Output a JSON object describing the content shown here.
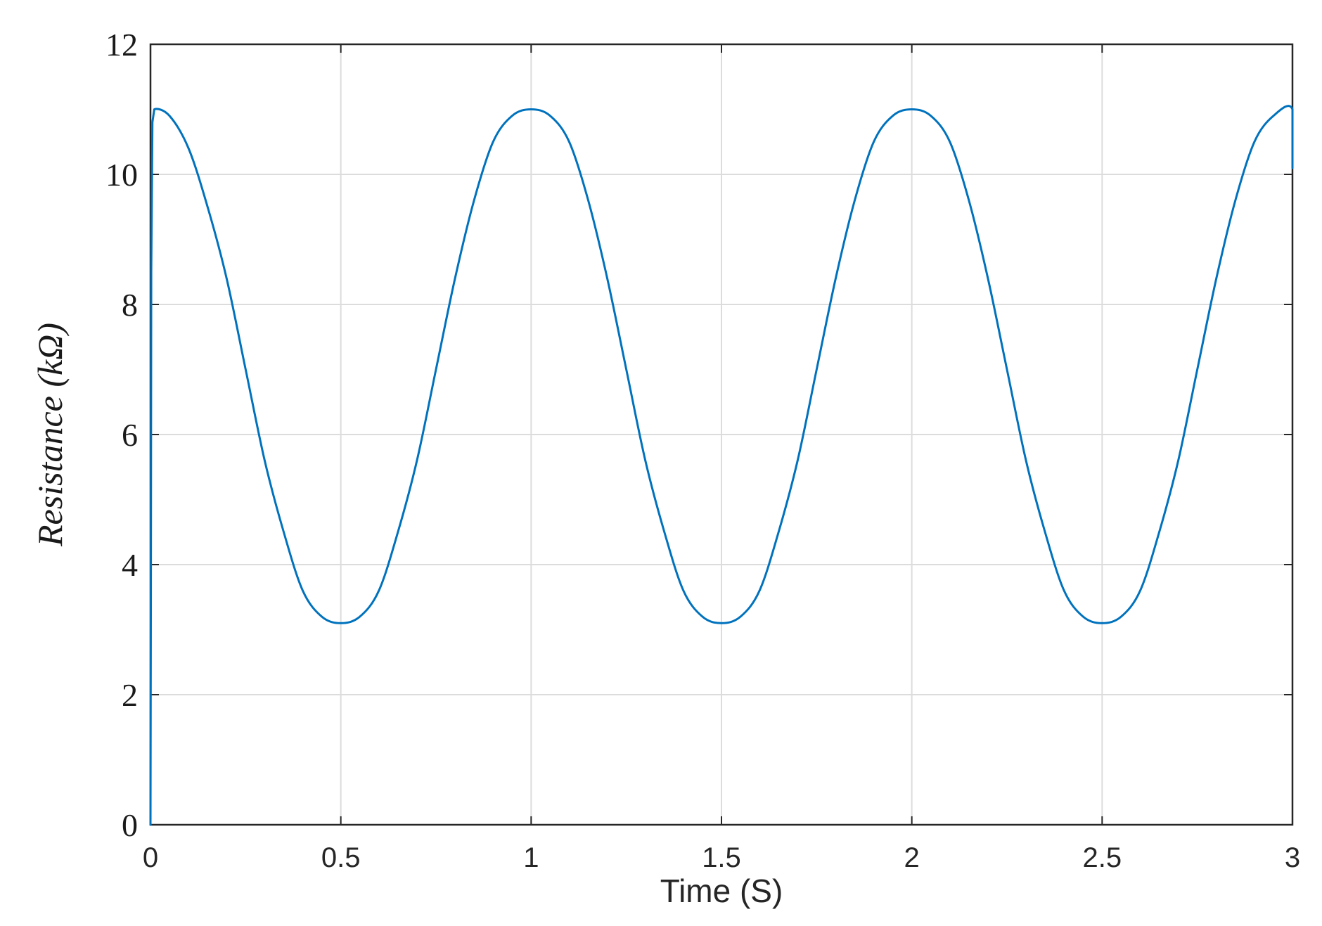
{
  "chart_data": {
    "type": "line",
    "title": "",
    "xlabel": "Time (S)",
    "ylabel": "Resistance (kΩ)",
    "xlim": [
      0,
      3
    ],
    "ylim": [
      0,
      12
    ],
    "x_ticks": [
      "0",
      "0.5",
      "1",
      "1.5",
      "2",
      "2.5",
      "3"
    ],
    "y_ticks": [
      "0",
      "2",
      "4",
      "6",
      "8",
      "10",
      "12"
    ],
    "grid": true,
    "legend": "none",
    "line_color": "#0072bd",
    "series": [
      {
        "x": [
          0,
          0.001,
          0.002,
          0.005,
          0.01,
          0.05,
          0.1,
          0.15,
          0.2,
          0.25,
          0.3,
          0.35,
          0.4,
          0.45,
          0.5,
          0.55,
          0.6,
          0.65,
          0.7,
          0.75,
          0.8,
          0.85,
          0.9,
          0.95,
          1.0,
          1.05,
          1.1,
          1.15,
          1.2,
          1.25,
          1.3,
          1.35,
          1.4,
          1.45,
          1.5,
          1.55,
          1.6,
          1.65,
          1.7,
          1.75,
          1.8,
          1.85,
          1.9,
          1.95,
          2.0,
          2.05,
          2.1,
          2.15,
          2.2,
          2.25,
          2.3,
          2.35,
          2.4,
          2.45,
          2.5,
          2.55,
          2.6,
          2.65,
          2.7,
          2.75,
          2.8,
          2.85,
          2.9,
          2.95,
          3.0,
          3.0
        ],
        "y": [
          0,
          3.5,
          8.5,
          10.8,
          11.0,
          10.9,
          10.4,
          9.5,
          8.4,
          7.0,
          5.6,
          4.5,
          3.6,
          3.2,
          3.1,
          3.2,
          3.6,
          4.5,
          5.6,
          7.0,
          8.4,
          9.6,
          10.5,
          10.9,
          11.0,
          10.9,
          10.5,
          9.6,
          8.4,
          7.0,
          5.6,
          4.5,
          3.6,
          3.2,
          3.1,
          3.2,
          3.6,
          4.5,
          5.6,
          7.0,
          8.4,
          9.6,
          10.5,
          10.9,
          11.0,
          10.9,
          10.5,
          9.6,
          8.4,
          7.0,
          5.6,
          4.5,
          3.6,
          3.2,
          3.1,
          3.2,
          3.6,
          4.5,
          5.6,
          7.0,
          8.4,
          9.6,
          10.5,
          10.9,
          11.0,
          10.1
        ]
      }
    ]
  }
}
